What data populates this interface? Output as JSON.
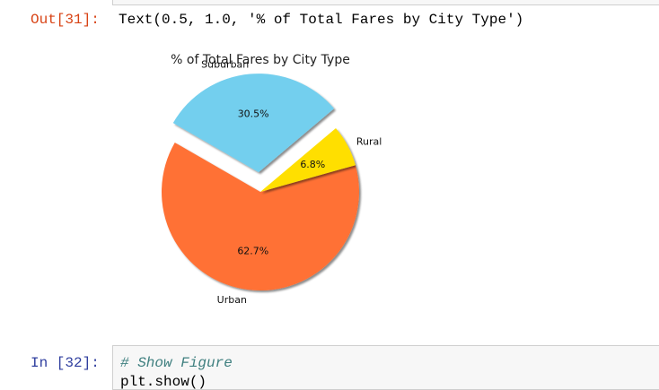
{
  "output_cell": {
    "prompt": "Out[31]:",
    "text": "Text(0.5, 1.0, '% of Total Fares by City Type')"
  },
  "chart_data": {
    "type": "pie",
    "title": "% of Total Fares by City Type",
    "start_angle_deg": 150,
    "slices": [
      {
        "label": "Urban",
        "value": 62.7,
        "pct_label": "62.7%",
        "color": "#ff7136",
        "explode": 0
      },
      {
        "label": "Rural",
        "value": 6.8,
        "pct_label": "6.8%",
        "color": "#ffdf00",
        "explode": 0
      },
      {
        "label": "Suburban",
        "value": 30.5,
        "pct_label": "30.5%",
        "color": "#73cfee",
        "explode": 0.2
      }
    ]
  },
  "input_cell": {
    "prompt": "In [32]:",
    "code_comment": "# Show Figure",
    "code_line_2": "plt.show()"
  }
}
